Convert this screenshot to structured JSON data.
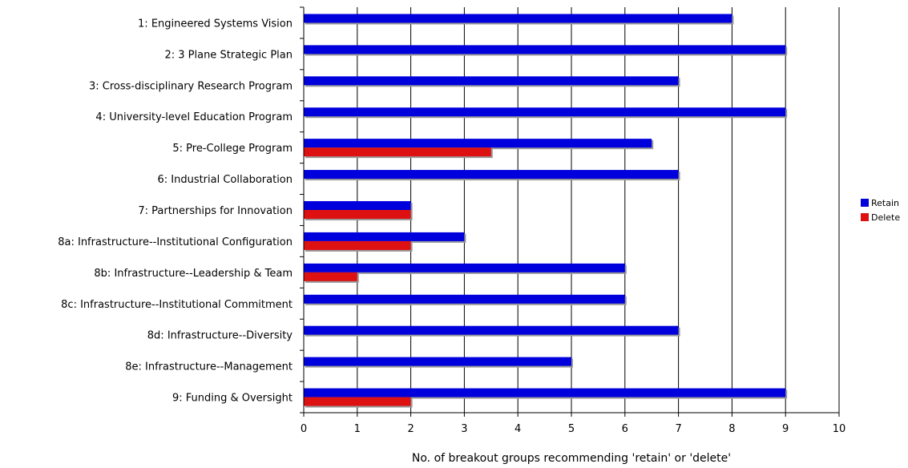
{
  "chart_data": {
    "type": "bar",
    "orientation": "horizontal",
    "title": "",
    "xlabel": "No. of breakout groups recommending 'retain' or 'delete'",
    "ylabel": "",
    "xlim": [
      0,
      10
    ],
    "xticks": [
      "0",
      "1",
      "2",
      "3",
      "4",
      "5",
      "6",
      "7",
      "8",
      "9",
      "10"
    ],
    "grid": "vertical",
    "legend_position": "right",
    "categories": [
      "1: Engineered Systems Vision",
      "2: 3 Plane Strategic Plan",
      "3: Cross-disciplinary Research Program",
      "4: University-level Education Program",
      "5: Pre-College Program",
      "6: Industrial Collaboration",
      "7: Partnerships for Innovation",
      "8a: Infrastructure--Institutional Configuration",
      "8b: Infrastructure--Leadership & Team",
      "8c: Infrastructure--Institutional Commitment",
      "8d: Infrastructure--Diversity",
      "8e: Infrastructure--Management",
      "9: Funding & Oversight"
    ],
    "series": [
      {
        "name": "Retain",
        "color": "#0000dd",
        "values": [
          8,
          9,
          7,
          9,
          6.5,
          7,
          2,
          3,
          6,
          6,
          7,
          5,
          9
        ]
      },
      {
        "name": "Delete",
        "color": "#dd1111",
        "values": [
          0,
          0,
          0,
          0,
          3.5,
          0,
          2,
          2,
          1,
          0,
          0,
          0,
          2
        ]
      }
    ]
  }
}
